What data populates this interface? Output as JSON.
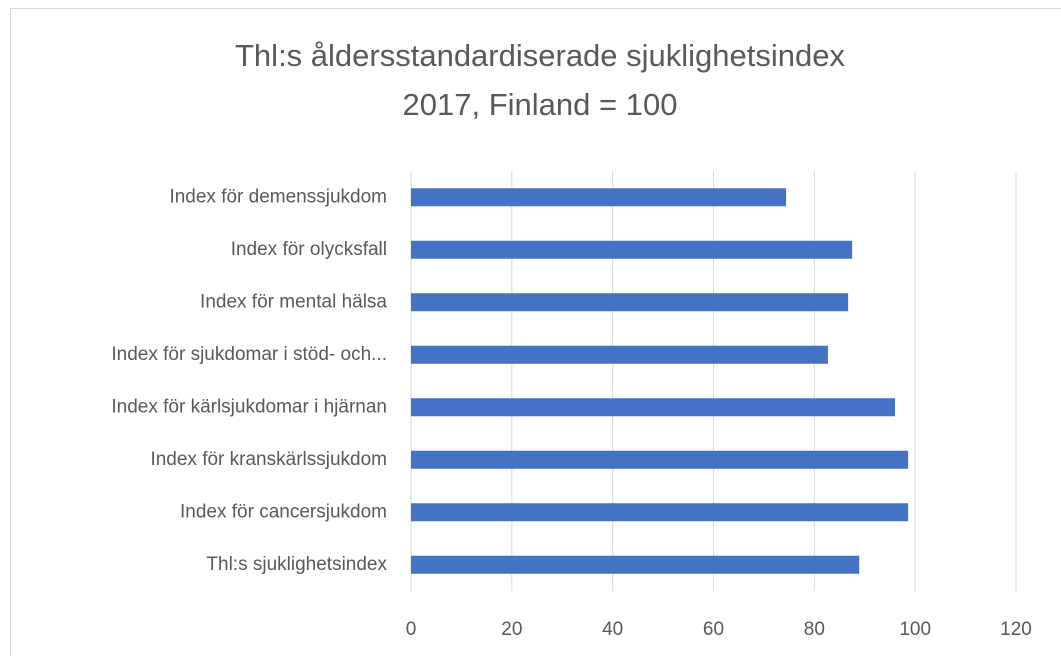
{
  "chart_data": {
    "type": "bar",
    "orientation": "horizontal",
    "title": [
      "Thl:s åldersstandardiserade sjuklighetsindex",
      "2017, Finland = 100"
    ],
    "categories": [
      "Index för demenssjukdom",
      "Index för olycksfall",
      "Index för mental hälsa",
      "Index för sjukdomar i stöd- och...",
      "Index för kärlsjukdomar i hjärnan",
      "Index för kranskärlssjukdom",
      "Index för cancersjukdom",
      "Thl:s sjuklighetsindex"
    ],
    "values": [
      74.4,
      87.5,
      86.7,
      82.7,
      96.0,
      98.6,
      98.6,
      88.9
    ],
    "color": "#4472c4",
    "xlim": [
      0,
      120
    ],
    "xticks": [
      0,
      20,
      40,
      60,
      80,
      100,
      120
    ],
    "grid": true
  }
}
